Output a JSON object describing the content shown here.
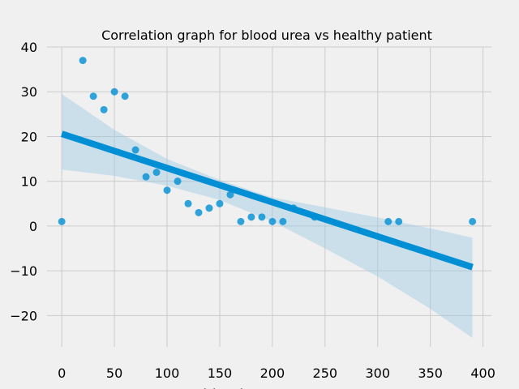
{
  "chart_data": {
    "type": "scatter",
    "title": "Correlation graph for blood urea vs healthy patient",
    "xlabel": "blood_urea",
    "ylabel": "",
    "xlim": [
      -14,
      408
    ],
    "ylim": [
      -27,
      40
    ],
    "xticks": [
      0,
      50,
      100,
      150,
      200,
      250,
      300,
      350,
      400
    ],
    "yticks": [
      -20,
      -10,
      0,
      10,
      20,
      30,
      40
    ],
    "grid": true,
    "colors": {
      "point": "#008fd5",
      "line": "#008fd5",
      "band": "#9ec9e2",
      "background": "#f0f0f0",
      "grid": "#cbcbcb"
    },
    "points": [
      {
        "x": 0,
        "y": 1
      },
      {
        "x": 20,
        "y": 37
      },
      {
        "x": 30,
        "y": 29
      },
      {
        "x": 40,
        "y": 26
      },
      {
        "x": 50,
        "y": 30
      },
      {
        "x": 60,
        "y": 29
      },
      {
        "x": 70,
        "y": 17
      },
      {
        "x": 80,
        "y": 11
      },
      {
        "x": 90,
        "y": 12
      },
      {
        "x": 100,
        "y": 8
      },
      {
        "x": 110,
        "y": 10
      },
      {
        "x": 120,
        "y": 5
      },
      {
        "x": 130,
        "y": 3
      },
      {
        "x": 140,
        "y": 4
      },
      {
        "x": 150,
        "y": 5
      },
      {
        "x": 160,
        "y": 7
      },
      {
        "x": 170,
        "y": 1
      },
      {
        "x": 180,
        "y": 2
      },
      {
        "x": 190,
        "y": 2
      },
      {
        "x": 200,
        "y": 1
      },
      {
        "x": 210,
        "y": 1
      },
      {
        "x": 220,
        "y": 4
      },
      {
        "x": 240,
        "y": 2
      },
      {
        "x": 310,
        "y": 1
      },
      {
        "x": 320,
        "y": 1
      },
      {
        "x": 390,
        "y": 1
      }
    ],
    "regression": {
      "x": [
        0,
        390
      ],
      "y": [
        20.6,
        -9.2
      ]
    },
    "confidence_band": {
      "x": [
        0,
        50,
        100,
        150,
        200,
        250,
        300,
        350,
        390
      ],
      "upper": [
        29.5,
        21.5,
        15.0,
        10.3,
        6.4,
        4.2,
        1.9,
        -0.5,
        -2.6
      ],
      "lower": [
        12.6,
        11.2,
        9.0,
        5.8,
        1.0,
        -5.0,
        -11.3,
        -18.5,
        -25.0
      ]
    }
  }
}
